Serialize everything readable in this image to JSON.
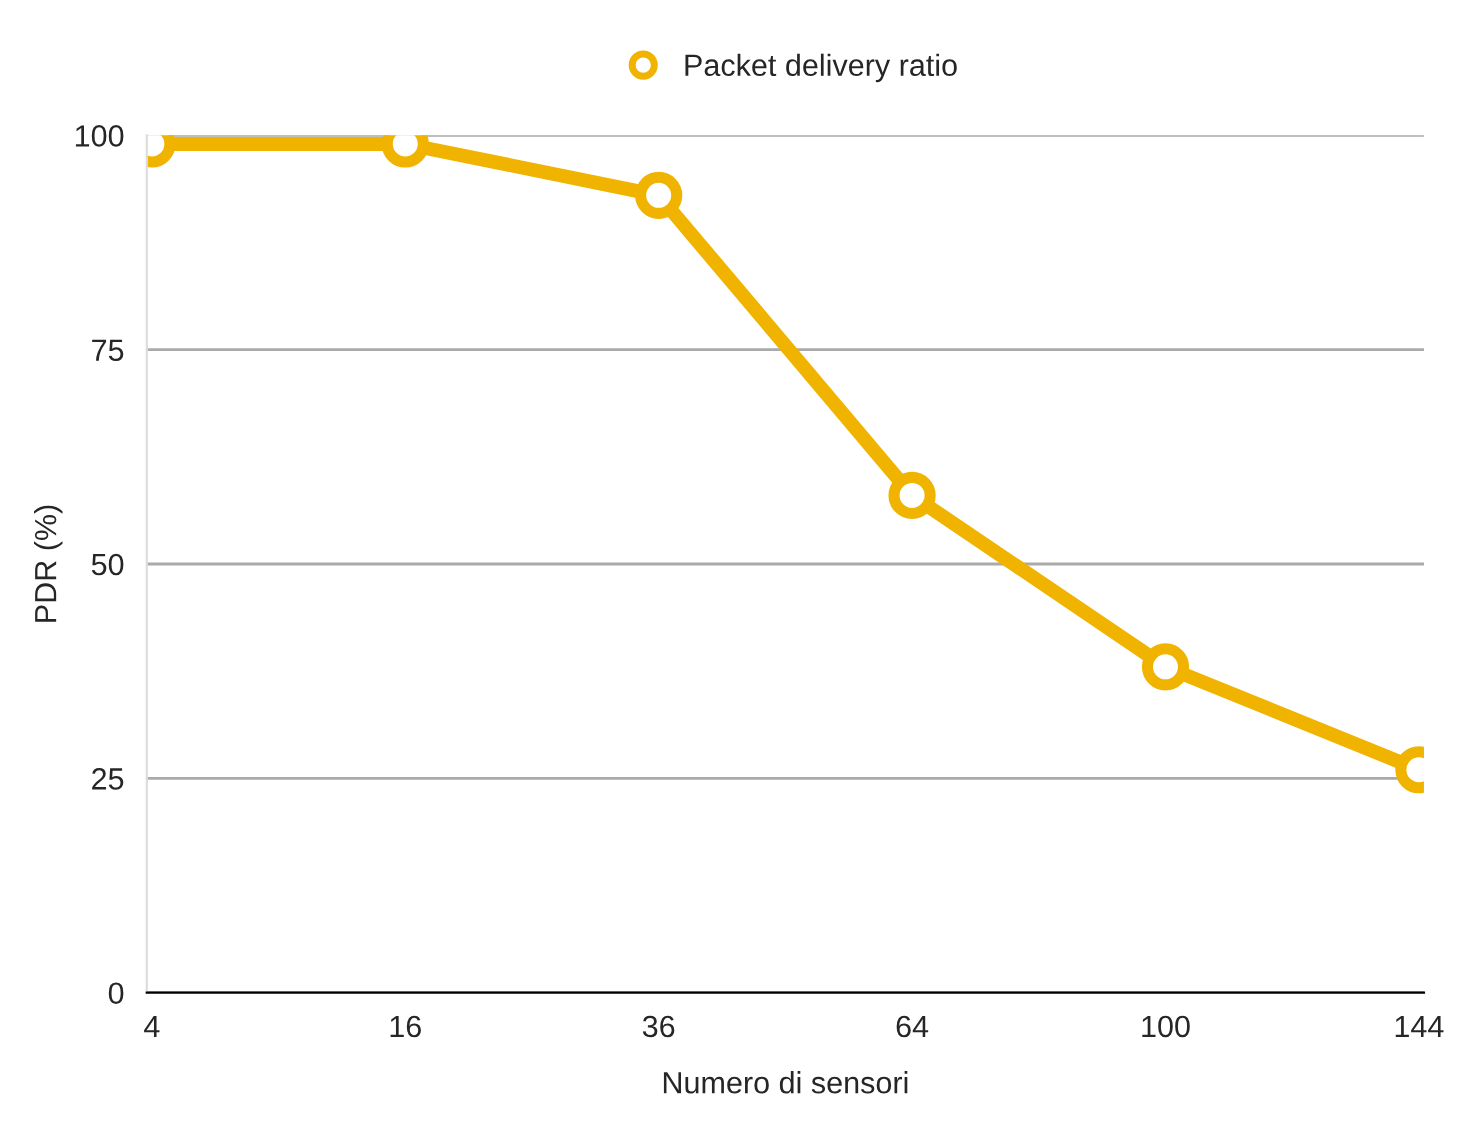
{
  "chart_data": {
    "type": "line",
    "categories": [
      "4",
      "16",
      "36",
      "64",
      "100",
      "144"
    ],
    "series": [
      {
        "name": "Packet delivery ratio",
        "color": "#f0b400",
        "values": [
          99,
          99,
          93,
          58,
          38,
          26
        ]
      }
    ],
    "xlabel": "Numero di sensori",
    "ylabel": "PDR (%)",
    "ylim": [
      0,
      100
    ],
    "yticks": [
      0,
      25,
      50,
      75,
      100
    ],
    "grid": "y",
    "legend": "top",
    "marker": "circle",
    "line_style": "solid"
  }
}
